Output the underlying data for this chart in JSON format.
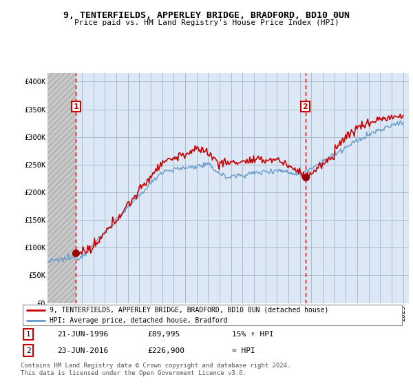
{
  "title1": "9, TENTERFIELDS, APPERLEY BRIDGE, BRADFORD, BD10 0UN",
  "title2": "Price paid vs. HM Land Registry's House Price Index (HPI)",
  "yticks": [
    0,
    50000,
    100000,
    150000,
    200000,
    250000,
    300000,
    350000,
    400000
  ],
  "ytick_labels": [
    "£0",
    "£50K",
    "£100K",
    "£150K",
    "£200K",
    "£250K",
    "£300K",
    "£350K",
    "£400K"
  ],
  "ylim": [
    0,
    415000
  ],
  "sale1_date": 1996.47,
  "sale1_price": 89995,
  "sale1_label": "1",
  "sale1_text": "21-JUN-1996",
  "sale1_price_str": "£89,995",
  "sale1_hpi": "15% ↑ HPI",
  "sale2_date": 2016.47,
  "sale2_price": 226900,
  "sale2_label": "2",
  "sale2_text": "23-JUN-2016",
  "sale2_price_str": "£226,900",
  "sale2_hpi": "≈ HPI",
  "line1_color": "#cc0000",
  "line2_color": "#6699cc",
  "bg_color": "#dce8f5",
  "hatch_color": "#c0c0c0",
  "grid_color": "#aabbcc",
  "footer": "Contains HM Land Registry data © Crown copyright and database right 2024.\nThis data is licensed under the Open Government Licence v3.0.",
  "legend1": "9, TENTERFIELDS, APPERLEY BRIDGE, BRADFORD, BD10 0UN (detached house)",
  "legend2": "HPI: Average price, detached house, Bradford"
}
